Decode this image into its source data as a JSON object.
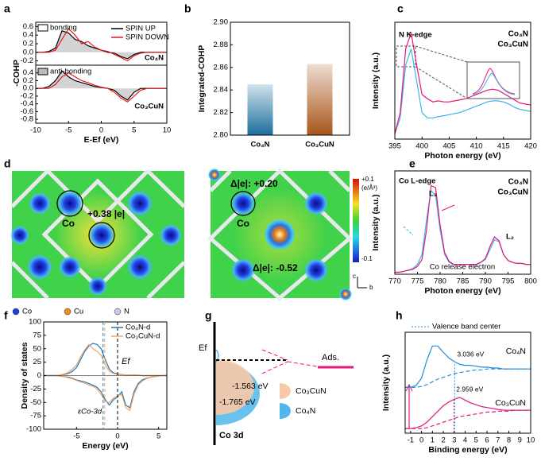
{
  "figure": {
    "panel_labels": [
      "a",
      "b",
      "c",
      "d",
      "e",
      "f",
      "g",
      "h"
    ],
    "d": {
      "left": {
        "charge": "+0.38 |e|",
        "atom": "Co"
      },
      "right": {
        "charge": "Δ|e|: +0.20",
        "atom": "Co",
        "cu_charge": "Δ|e|: -0.52"
      },
      "colorbar": {
        "max": "+0.1",
        "unit": "(e/Å³)",
        "min": "-0.1"
      },
      "legend": [
        "Co",
        "Cu",
        "N"
      ],
      "axes": [
        "c",
        "b"
      ]
    },
    "g": {
      "fermi": "Ef",
      "ads": "Ads.",
      "center_co3cun": "-1.563 eV",
      "center_co4n": "-1.765 eV",
      "legend": [
        "Co₃CuN",
        "Co₄N"
      ],
      "orbital": "Co 3d"
    }
  },
  "chart_data": [
    {
      "type": "line",
      "y_label": "-COHP",
      "annotations": [
        {
          "text": "bonding"
        },
        {
          "text": "Co₄N"
        }
      ],
      "fill": "#d3d3d3",
      "x": [
        -10,
        -9,
        -8,
        -7,
        -6,
        -5,
        -4,
        -3,
        -2,
        -1,
        0,
        1,
        2,
        3,
        4,
        5,
        6,
        7,
        8,
        9,
        10
      ],
      "xlim": [
        -10,
        10
      ],
      "ylim": [
        -0.3,
        0.7
      ],
      "yticks": [
        -0.2,
        {
          "value": 0,
          "label": "0.0"
        },
        0.2,
        0.4,
        0.6
      ],
      "series": [
        {
          "name": "SPIN UP",
          "color": "#000000",
          "values": [
            0,
            0,
            0.02,
            0.1,
            0.5,
            0.45,
            0.3,
            0.25,
            0.15,
            0.1,
            0.05,
            0,
            -0.02,
            -0.1,
            -0.15,
            -0.05,
            0,
            0,
            0,
            0,
            0
          ]
        },
        {
          "name": "SPIN DOWN",
          "color": "#e8161b",
          "values": [
            0,
            0,
            0,
            0.05,
            0.3,
            0.55,
            0.4,
            0.2,
            0.25,
            0.12,
            0.05,
            0.02,
            -0.05,
            -0.12,
            -0.2,
            -0.08,
            -0.02,
            0,
            0,
            0,
            0
          ]
        }
      ]
    },
    {
      "type": "line",
      "x_label": "E-Ef (eV)",
      "annotations": [
        {
          "text": "anti-bonding"
        },
        {
          "text": "Co₃CuN"
        }
      ],
      "fill": "#d3d3d3",
      "x": [
        -10,
        -9,
        -8,
        -7,
        -6,
        -5,
        -4,
        -3,
        -2,
        -1,
        0,
        1,
        2,
        3,
        4,
        5,
        6,
        7,
        8,
        9,
        10
      ],
      "xlim": [
        -10,
        10
      ],
      "xticks": [
        -10,
        -5,
        0,
        5,
        10
      ],
      "ylim": [
        -0.9,
        0.6
      ],
      "yticks": [
        -0.8,
        -0.6,
        -0.4,
        -0.2,
        {
          "value": 0,
          "label": "0.0"
        },
        0.2,
        0.4
      ],
      "series": [
        {
          "color": "#000000",
          "values": [
            0,
            0,
            0.05,
            0.2,
            0.45,
            0.3,
            0.2,
            0.15,
            0.1,
            0.05,
            0.02,
            0,
            -0.05,
            -0.2,
            -0.3,
            -0.1,
            0,
            0,
            0,
            0,
            0
          ]
        },
        {
          "color": "#e8161b",
          "values": [
            0,
            0,
            0,
            0.1,
            0.3,
            0.4,
            0.3,
            0.2,
            0.15,
            0.08,
            0.03,
            0,
            -0.1,
            -0.25,
            -0.35,
            -0.2,
            -0.05,
            0,
            0,
            0,
            0
          ]
        }
      ]
    },
    {
      "type": "bar",
      "y_label": "Integrated-COHP",
      "categories": [
        "Co₄N",
        "Co₃CuN"
      ],
      "values": [
        2.845,
        2.863
      ],
      "colors": [
        "#1c6e9c",
        "#a8551a"
      ],
      "ylim": [
        2.8,
        2.9
      ],
      "yticks": [
        {
          "value": 2.8,
          "label": "2.80"
        },
        2.82,
        2.84,
        2.86,
        2.88,
        {
          "value": 2.9,
          "label": "2.90"
        }
      ]
    },
    {
      "type": "line",
      "x_label": "Photon energy (eV)",
      "y_label": "Intensity (a.u.)",
      "annotations": [
        {
          "text": "N K-edge"
        }
      ],
      "x": [
        395,
        396,
        397,
        398,
        399,
        400,
        401,
        402,
        403,
        404,
        405,
        406,
        407,
        408,
        409,
        410,
        411,
        412,
        413,
        414,
        415,
        416,
        417,
        418,
        419,
        420
      ],
      "xlim": [
        395,
        420
      ],
      "xticks": [
        395,
        400,
        405,
        410,
        415,
        420
      ],
      "ylim": [
        0,
        1.1
      ],
      "series": [
        {
          "name": "Co₄N",
          "color": "#3cb6e8",
          "values": [
            0.05,
            0.2,
            0.7,
            0.85,
            0.55,
            0.25,
            0.2,
            0.2,
            0.21,
            0.22,
            0.23,
            0.24,
            0.25,
            0.27,
            0.29,
            0.31,
            0.33,
            0.35,
            0.36,
            0.36,
            0.35,
            0.33,
            0.3,
            0.28,
            0.27,
            0.26
          ]
        },
        {
          "name": "Co₃CuN",
          "color": "#e6177a",
          "values": [
            0.05,
            0.25,
            0.85,
            1.0,
            0.7,
            0.42,
            0.38,
            0.35,
            0.36,
            0.35,
            0.35,
            0.36,
            0.37,
            0.38,
            0.4,
            0.42,
            0.44,
            0.46,
            0.47,
            0.46,
            0.43,
            0.4,
            0.37,
            0.34,
            0.33,
            0.32
          ]
        }
      ]
    },
    {
      "type": "line",
      "x_label": "Photon energy (eV)",
      "y_label": "Intensity (a.u.)",
      "annotations": [
        {
          "text": "Co L-edge"
        },
        {
          "text": "L₃"
        },
        {
          "text": "L₂"
        },
        {
          "text": "Co release electron"
        }
      ],
      "x": [
        770,
        771,
        772,
        773,
        774,
        775,
        776,
        777,
        778,
        779,
        780,
        781,
        782,
        783,
        784,
        785,
        786,
        787,
        788,
        789,
        790,
        791,
        792,
        793,
        794,
        795,
        796,
        797,
        798,
        799,
        800
      ],
      "xlim": [
        770,
        800
      ],
      "xticks": [
        770,
        775,
        780,
        785,
        790,
        795,
        800
      ],
      "ylim": [
        0,
        1.05
      ],
      "series": [
        {
          "name": "Co₄N",
          "color": "#3cb6e8",
          "values": [
            0.02,
            0.02,
            0.03,
            0.04,
            0.06,
            0.1,
            0.2,
            0.55,
            0.85,
            0.8,
            0.45,
            0.2,
            0.12,
            0.1,
            0.1,
            0.1,
            0.1,
            0.1,
            0.1,
            0.12,
            0.15,
            0.25,
            0.35,
            0.33,
            0.2,
            0.14,
            0.12,
            0.11,
            0.11,
            0.1,
            0.1
          ]
        },
        {
          "name": "Co₃CuN",
          "color": "#e6177a",
          "values": [
            0.02,
            0.02,
            0.03,
            0.04,
            0.05,
            0.08,
            0.15,
            0.45,
            0.9,
            0.88,
            0.5,
            0.22,
            0.13,
            0.1,
            0.1,
            0.1,
            0.1,
            0.1,
            0.1,
            0.12,
            0.16,
            0.28,
            0.38,
            0.34,
            0.2,
            0.14,
            0.12,
            0.11,
            0.11,
            0.1,
            0.1
          ]
        }
      ]
    },
    {
      "type": "line",
      "x_label": "Energy (eV)",
      "y_label": "Density of states",
      "annotations": [
        {
          "text": "Ef"
        },
        {
          "text": "εCo-3d"
        }
      ],
      "x": [
        -9,
        -8.5,
        -8,
        -7.5,
        -7,
        -6.5,
        -6,
        -5.5,
        -5,
        -4.5,
        -4,
        -3.5,
        -3,
        -2.5,
        -2,
        -1.5,
        -1,
        -0.5,
        0,
        0.5,
        1,
        1.5,
        2,
        2.5,
        3,
        3.5,
        4,
        4.5,
        5,
        5.5,
        6
      ],
      "xlim": [
        -9,
        6
      ],
      "xticks": [
        -5,
        0,
        5
      ],
      "ylim": [
        -100,
        100
      ],
      "yticks": [
        -100,
        -75,
        -50,
        -25,
        0,
        25,
        50,
        75,
        100
      ],
      "centers": [
        {
          "x": -1.765,
          "color": "#1f77b4"
        },
        {
          "x": -1.563,
          "color": "#f4a460"
        }
      ],
      "series": [
        {
          "name": "Co₄N-d",
          "color": "#1f77b4",
          "values": [
            0,
            0,
            0,
            0,
            1,
            2,
            4,
            8,
            15,
            30,
            45,
            55,
            60,
            58,
            50,
            30,
            12,
            5,
            3,
            2,
            1,
            1,
            1,
            1,
            0,
            0,
            0,
            0,
            0,
            0,
            0
          ]
        },
        {
          "name": "Co₃CuN-d",
          "color": "#f4a460",
          "values": [
            0,
            0,
            0,
            0,
            1,
            3,
            6,
            12,
            20,
            35,
            48,
            58,
            50,
            45,
            38,
            20,
            8,
            4,
            2,
            2,
            1,
            1,
            1,
            1,
            0,
            0,
            0,
            0,
            0,
            0,
            0
          ]
        },
        {
          "color": "#1f77b4",
          "values": [
            0,
            0,
            0,
            0,
            -1,
            -2,
            -3,
            -5,
            -8,
            -10,
            -12,
            -15,
            -18,
            -22,
            -30,
            -45,
            -55,
            -45,
            -40,
            -30,
            -55,
            -60,
            -30,
            -15,
            -8,
            -5,
            -3,
            -2,
            -1,
            0,
            0
          ]
        },
        {
          "color": "#f4a460",
          "values": [
            0,
            0,
            0,
            0,
            -1,
            -2,
            -4,
            -6,
            -9,
            -12,
            -14,
            -18,
            -20,
            -25,
            -35,
            -48,
            -50,
            -42,
            -38,
            -35,
            -60,
            -65,
            -35,
            -18,
            -10,
            -6,
            -3,
            -2,
            -1,
            0,
            0
          ]
        }
      ]
    },
    {
      "type": "line",
      "x_label": "Binding energy (eV)",
      "y_label": "Intensity (a.u.)",
      "legend_label": "Valence band center",
      "annotations": [
        {
          "text": "Co₄N"
        },
        {
          "text": "Co₃CuN"
        }
      ],
      "centers": [
        {
          "text": "3.036 eV",
          "x": 3.036
        },
        {
          "text": "2.959 eV",
          "x": 2.959
        }
      ],
      "x": [
        -1.5,
        -1,
        -0.5,
        0,
        0.5,
        1,
        1.5,
        2,
        2.5,
        3,
        3.5,
        4,
        4.5,
        5,
        5.5,
        6,
        6.5,
        7,
        7.5,
        8,
        8.5,
        9,
        9.5,
        10
      ],
      "xlim": [
        -1.5,
        10
      ],
      "xticks": [
        -1,
        0,
        1,
        2,
        3,
        4,
        5,
        6,
        7,
        8,
        9,
        10
      ],
      "ylim": [
        0,
        1.1
      ],
      "series": [
        {
          "color": "#1f8ed8",
          "values": [
            0.5,
            0.5,
            0.52,
            0.6,
            0.8,
            0.95,
            0.95,
            0.88,
            0.82,
            0.78,
            0.75,
            0.74,
            0.74,
            0.73,
            0.72,
            0.72,
            0.71,
            0.71,
            0.7,
            0.7,
            0.7,
            0.7,
            0.7,
            0.7
          ]
        },
        {
          "color": "#1f8ed8",
          "dash": true,
          "values": [
            0.5,
            0.5,
            0.5,
            0.51,
            0.53,
            0.56,
            0.59,
            0.61,
            0.63,
            0.65,
            0.66,
            0.67,
            0.68,
            0.69,
            0.69,
            0.7,
            0.7,
            0.7,
            0.7,
            0.7,
            0.7,
            0.7,
            0.7,
            0.7
          ]
        },
        {
          "color": "#e01a7a",
          "values": [
            0.05,
            0.05,
            0.06,
            0.08,
            0.12,
            0.18,
            0.24,
            0.3,
            0.34,
            0.37,
            0.39,
            0.36,
            0.33,
            0.31,
            0.29,
            0.28,
            0.27,
            0.26,
            0.25,
            0.25,
            0.25,
            0.25,
            0.25,
            0.25
          ]
        },
        {
          "color": "#e01a7a",
          "dash": true,
          "values": [
            0.05,
            0.05,
            0.05,
            0.05,
            0.06,
            0.08,
            0.1,
            0.12,
            0.14,
            0.16,
            0.18,
            0.19,
            0.2,
            0.21,
            0.22,
            0.23,
            0.23,
            0.24,
            0.24,
            0.24,
            0.25,
            0.25,
            0.25,
            0.25
          ]
        }
      ]
    }
  ]
}
